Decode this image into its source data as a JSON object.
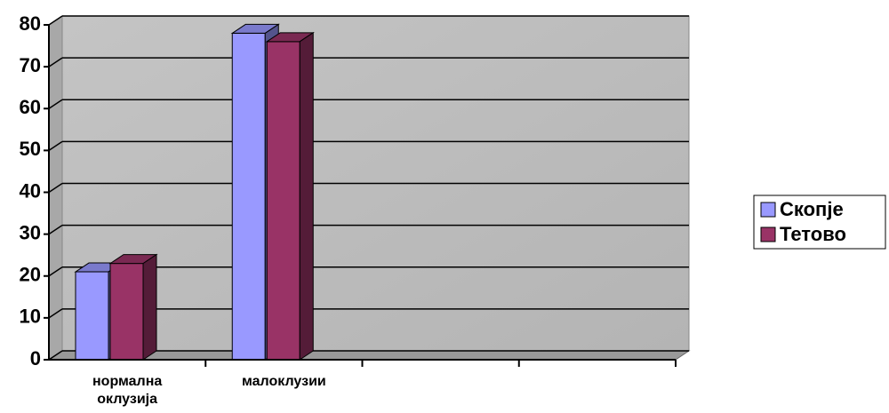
{
  "chart_data": {
    "type": "bar3d",
    "categories": [
      "нормална оклузија",
      "малоклузии",
      null,
      null
    ],
    "series": [
      {
        "name": "Скопје",
        "color": "#9999ff",
        "values": [
          21,
          78,
          null,
          null
        ]
      },
      {
        "name": "Тетово",
        "color": "#993366",
        "values": [
          23,
          76,
          null,
          null
        ]
      }
    ],
    "ylim": [
      0,
      80
    ],
    "yticks": [
      0,
      10,
      20,
      30,
      40,
      50,
      60,
      70,
      80
    ],
    "grid": true,
    "legend": "right"
  }
}
